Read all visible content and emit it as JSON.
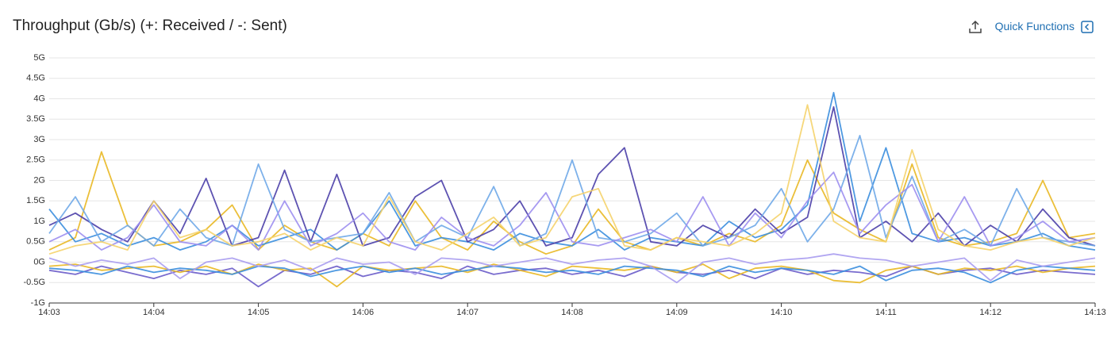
{
  "chart_data": {
    "type": "line",
    "title": "Throughput (Gb/s) (+: Received / -: Sent)",
    "categories": [
      "14:03",
      null,
      null,
      null,
      "14:04",
      null,
      null,
      null,
      "14:05",
      null,
      null,
      null,
      "14:06",
      null,
      null,
      null,
      "14:07",
      null,
      null,
      null,
      "14:08",
      null,
      null,
      null,
      "14:09",
      null,
      null,
      null,
      "14:10",
      null,
      null,
      null,
      "14:11",
      null,
      null,
      null,
      "14:12",
      null,
      null,
      null,
      "14:13"
    ],
    "ylim": [
      -1,
      5
    ],
    "yticks": [
      {
        "value": -1,
        "label": "-1G"
      },
      {
        "value": -0.5,
        "label": "-0.5G"
      },
      {
        "value": 0,
        "label": "0G"
      },
      {
        "value": 0.5,
        "label": "0.5G"
      },
      {
        "value": 1,
        "label": "1G"
      },
      {
        "value": 1.5,
        "label": "1.5G"
      },
      {
        "value": 2,
        "label": "2G"
      },
      {
        "value": 2.5,
        "label": "2.5G"
      },
      {
        "value": 3,
        "label": "3G"
      },
      {
        "value": 3.5,
        "label": "3.5G"
      },
      {
        "value": 4,
        "label": "4G"
      },
      {
        "value": 4.5,
        "label": "4.5G"
      },
      {
        "value": 5,
        "label": "5G"
      }
    ],
    "grid": true,
    "series": [
      {
        "color": "#e9b824",
        "values": [
          0.3,
          0.6,
          2.7,
          0.9,
          0.4,
          0.5,
          0.8,
          1.4,
          0.3,
          0.9,
          0.5,
          0.3,
          0.7,
          0.4,
          1.5,
          0.6,
          0.3,
          1.0,
          0.5,
          0.2,
          0.4,
          1.3,
          0.5,
          0.3,
          0.6,
          0.4,
          0.7,
          0.5,
          0.9,
          2.5,
          1.2,
          0.8,
          0.5,
          2.4,
          0.6,
          0.4,
          0.5,
          0.7,
          2.0,
          0.6,
          0.7
        ]
      },
      {
        "color": "#3b8ede",
        "values": [
          1.3,
          0.5,
          0.7,
          0.4,
          0.6,
          0.3,
          0.5,
          0.9,
          0.4,
          0.6,
          0.8,
          0.3,
          0.7,
          1.5,
          0.4,
          0.6,
          0.5,
          0.3,
          0.7,
          0.5,
          0.4,
          0.8,
          0.3,
          0.6,
          0.5,
          0.4,
          1.0,
          0.6,
          0.8,
          1.4,
          4.15,
          1.0,
          2.8,
          0.7,
          0.5,
          0.6,
          0.4,
          0.5,
          0.7,
          0.4,
          0.3
        ]
      },
      {
        "color": "#4b3fa8",
        "values": [
          0.9,
          1.2,
          0.8,
          0.5,
          1.5,
          0.7,
          2.05,
          0.4,
          0.6,
          2.25,
          0.5,
          2.15,
          0.4,
          0.6,
          1.6,
          2.0,
          0.5,
          0.8,
          1.5,
          0.4,
          0.6,
          2.15,
          2.8,
          0.5,
          0.4,
          0.9,
          0.6,
          1.3,
          0.7,
          1.1,
          3.8,
          0.6,
          1.0,
          0.5,
          1.2,
          0.4,
          0.9,
          0.5,
          1.3,
          0.6,
          0.4
        ]
      },
      {
        "color": "#6fa8e8",
        "values": [
          0.7,
          1.6,
          0.5,
          0.9,
          0.4,
          1.3,
          0.6,
          0.4,
          2.4,
          0.8,
          0.5,
          0.6,
          0.7,
          1.7,
          0.5,
          0.9,
          0.6,
          1.85,
          0.4,
          0.7,
          2.5,
          0.6,
          0.5,
          0.7,
          1.2,
          0.4,
          0.6,
          0.9,
          1.8,
          0.5,
          1.3,
          3.1,
          0.6,
          2.1,
          0.5,
          0.8,
          0.4,
          1.8,
          0.6,
          0.5,
          0.4
        ]
      },
      {
        "color": "#9d8ff0",
        "values": [
          0.5,
          0.8,
          0.3,
          0.6,
          1.4,
          0.5,
          0.4,
          0.9,
          0.3,
          1.5,
          0.4,
          0.7,
          1.2,
          0.5,
          0.3,
          1.1,
          0.6,
          0.4,
          0.9,
          1.7,
          0.5,
          0.4,
          0.6,
          0.8,
          0.5,
          1.6,
          0.4,
          1.2,
          0.6,
          1.5,
          2.2,
          0.7,
          1.4,
          1.9,
          0.5,
          1.6,
          0.4,
          0.6,
          1.0,
          0.5,
          0.6
        ]
      },
      {
        "color": "#f5d36b",
        "values": [
          0.2,
          0.4,
          0.5,
          0.3,
          1.5,
          0.6,
          0.8,
          0.4,
          0.5,
          0.7,
          0.3,
          0.6,
          0.4,
          1.6,
          0.5,
          0.3,
          0.7,
          1.1,
          0.4,
          0.6,
          1.6,
          1.8,
          0.4,
          0.3,
          0.6,
          0.5,
          0.4,
          0.7,
          1.2,
          3.85,
          1.0,
          0.6,
          0.5,
          2.75,
          0.8,
          0.4,
          0.3,
          0.5,
          0.6,
          0.4,
          0.6
        ]
      },
      {
        "color": "#6a5cc9",
        "values": [
          -0.2,
          -0.3,
          -0.1,
          -0.25,
          -0.4,
          -0.2,
          -0.3,
          -0.15,
          -0.6,
          -0.2,
          -0.3,
          -0.1,
          -0.35,
          -0.2,
          -0.25,
          -0.4,
          -0.1,
          -0.3,
          -0.2,
          -0.15,
          -0.3,
          -0.2,
          -0.35,
          -0.1,
          -0.25,
          -0.3,
          -0.2,
          -0.4,
          -0.15,
          -0.3,
          -0.2,
          -0.25,
          -0.35,
          -0.1,
          -0.3,
          -0.2,
          -0.15,
          -0.3,
          -0.2,
          -0.25,
          -0.3
        ]
      },
      {
        "color": "#e9b824",
        "values": [
          -0.1,
          -0.05,
          -0.2,
          -0.15,
          -0.1,
          -0.25,
          -0.1,
          -0.3,
          -0.05,
          -0.2,
          -0.15,
          -0.6,
          -0.1,
          -0.2,
          -0.15,
          -0.1,
          -0.25,
          -0.05,
          -0.2,
          -0.35,
          -0.1,
          -0.15,
          -0.2,
          -0.1,
          -0.25,
          -0.05,
          -0.4,
          -0.15,
          -0.1,
          -0.2,
          -0.45,
          -0.5,
          -0.2,
          -0.1,
          -0.3,
          -0.15,
          -0.2,
          -0.1,
          -0.25,
          -0.15,
          -0.1
        ]
      },
      {
        "color": "#3b8ede",
        "values": [
          -0.15,
          -0.2,
          -0.3,
          -0.1,
          -0.25,
          -0.15,
          -0.2,
          -0.3,
          -0.1,
          -0.15,
          -0.35,
          -0.2,
          -0.1,
          -0.25,
          -0.15,
          -0.3,
          -0.2,
          -0.1,
          -0.15,
          -0.25,
          -0.2,
          -0.3,
          -0.1,
          -0.15,
          -0.2,
          -0.35,
          -0.1,
          -0.25,
          -0.15,
          -0.2,
          -0.3,
          -0.1,
          -0.45,
          -0.2,
          -0.15,
          -0.25,
          -0.5,
          -0.2,
          -0.1,
          -0.15,
          -0.2
        ]
      },
      {
        "color": "#a89cf0",
        "values": [
          0.1,
          -0.1,
          0.05,
          -0.05,
          0.1,
          -0.4,
          0,
          0.1,
          -0.1,
          0.05,
          -0.2,
          0.1,
          -0.05,
          0,
          -0.3,
          0.1,
          0.05,
          -0.1,
          0,
          0.1,
          -0.05,
          0.05,
          0.1,
          -0.1,
          -0.5,
          0,
          0.1,
          -0.05,
          0.05,
          0.1,
          0.2,
          0.1,
          0.05,
          -0.1,
          0,
          0.1,
          -0.45,
          0.05,
          -0.1,
          0,
          0.1
        ]
      }
    ]
  },
  "toolbar": {
    "quick_functions": "Quick Functions"
  }
}
